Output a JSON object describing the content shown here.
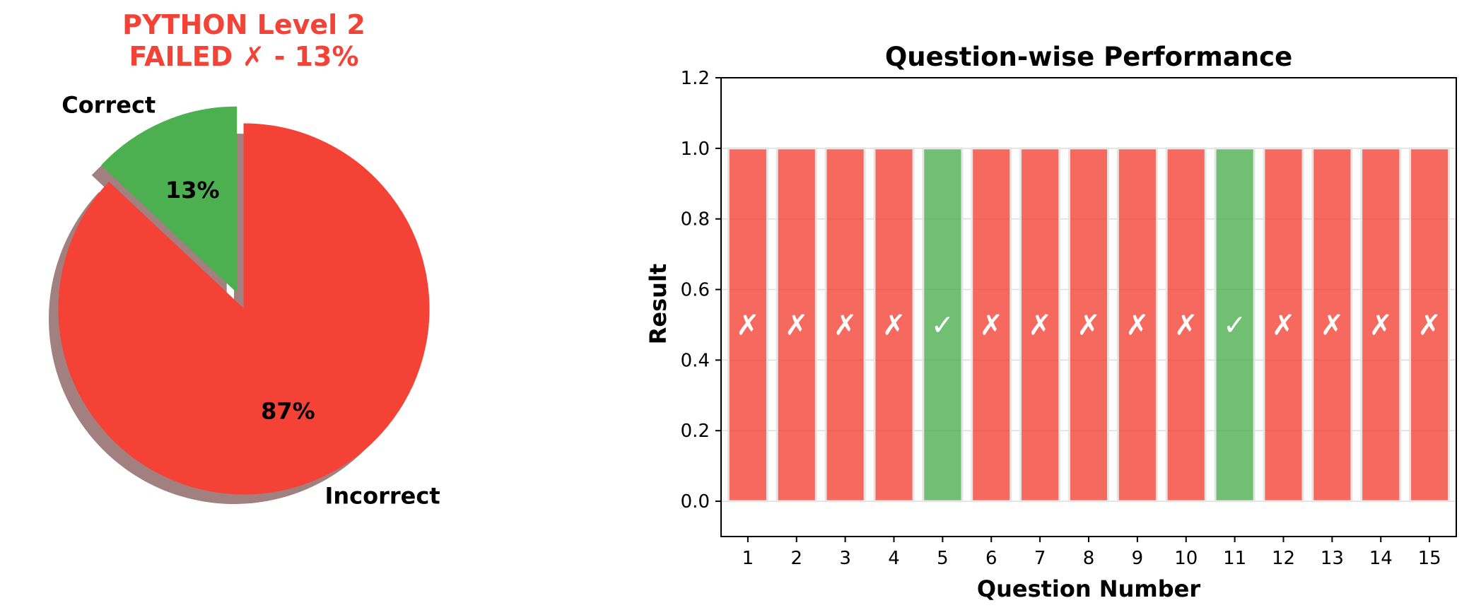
{
  "chart_data": [
    {
      "type": "pie",
      "title_line1": "PYTHON Level 2",
      "title_line2": "FAILED ✗ - 13%",
      "title_color": "#f44336",
      "slices": [
        {
          "label": "Correct",
          "value": 13,
          "pct_label": "13%",
          "color": "#4caf50",
          "exploded": true
        },
        {
          "label": "Incorrect",
          "value": 87,
          "pct_label": "87%",
          "color": "#f44336",
          "exploded": false
        }
      ],
      "shadow": true,
      "start_angle": 90
    },
    {
      "type": "bar",
      "title": "Question-wise Performance",
      "xlabel": "Question Number",
      "ylabel": "Result",
      "categories": [
        "1",
        "2",
        "3",
        "4",
        "5",
        "6",
        "7",
        "8",
        "9",
        "10",
        "11",
        "12",
        "13",
        "14",
        "15"
      ],
      "values": [
        1,
        1,
        1,
        1,
        1,
        1,
        1,
        1,
        1,
        1,
        1,
        1,
        1,
        1,
        1
      ],
      "results": [
        "✗",
        "✗",
        "✗",
        "✗",
        "✓",
        "✗",
        "✗",
        "✗",
        "✗",
        "✗",
        "✓",
        "✗",
        "✗",
        "✗",
        "✗"
      ],
      "correct_color": "#4caf50",
      "incorrect_color": "#f44336",
      "ylim": [
        -0.1,
        1.2
      ],
      "yticks": [
        "0.0",
        "0.2",
        "0.4",
        "0.6",
        "0.8",
        "1.0",
        "1.2"
      ],
      "grid": "y"
    }
  ]
}
